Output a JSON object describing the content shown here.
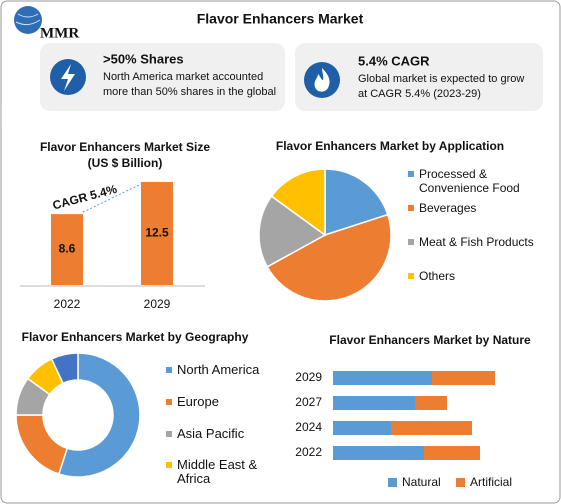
{
  "header": {
    "logo": "MMR",
    "title": "Flavor Enhancers Market"
  },
  "cards": [
    {
      "title": ">50% Shares",
      "text": "North America market accounted more than 50% shares in the global"
    },
    {
      "title": "5.4% CAGR",
      "text": "Global market is expected to grow at CAGR 5.4% (2023-29)"
    }
  ],
  "chart_data": [
    {
      "type": "bar",
      "title": "Flavor Enhancers Market Size",
      "subtitle": "(US $ Billion)",
      "categories": [
        "2022",
        "2029"
      ],
      "values": [
        8.6,
        12.5
      ],
      "color": "#ed7d31",
      "annotation": "CAGR 5.4%"
    },
    {
      "type": "pie",
      "title": "Flavor Enhancers Market by Application",
      "categories": [
        "Processed & Convenience Food",
        "Beverages",
        "Meat & Fish Products",
        "Others"
      ],
      "values": [
        20,
        47,
        18,
        15
      ],
      "colors": [
        "#5b9bd5",
        "#ed7d31",
        "#a5a5a5",
        "#ffc000"
      ]
    },
    {
      "type": "donut",
      "title": "Flavor Enhancers Market by Geography",
      "categories": [
        "North America",
        "Europe",
        "Asia Pacific",
        "Middle East & Africa",
        null
      ],
      "values": [
        55,
        20,
        10,
        8,
        7
      ],
      "colors": [
        "#5b9bd5",
        "#ed7d31",
        "#a5a5a5",
        "#ffc000",
        "#4472c4"
      ]
    },
    {
      "type": "stacked-barh",
      "title": "Flavor Enhancers Market by Nature",
      "categories": [
        "2029",
        "2027",
        "2024",
        "2022"
      ],
      "series": [
        {
          "name": "Natural",
          "color": "#5b9bd5",
          "values": [
            99,
            82,
            58,
            91
          ]
        },
        {
          "name": "Artificial",
          "color": "#ed7d31",
          "values": [
            63,
            32,
            81,
            56
          ]
        }
      ]
    }
  ]
}
